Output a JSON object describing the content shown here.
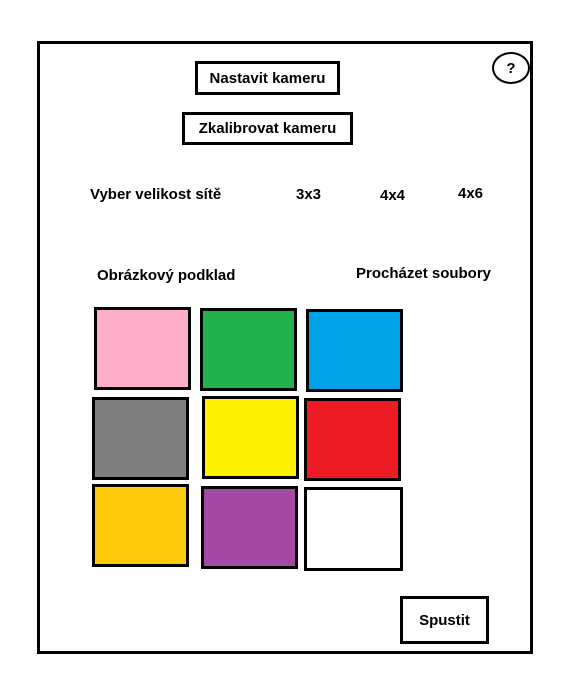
{
  "buttons": {
    "setup_camera": "Nastavit kameru",
    "calibrate_camera": "Zkalibrovat kameru",
    "help": "?",
    "start": "Spustit"
  },
  "grid_size": {
    "label": "Vyber velikost sítě",
    "options": [
      "3x3",
      "4x4",
      "4x6"
    ]
  },
  "background": {
    "label": "Obrázkový podklad",
    "browse": "Procházet soubory"
  },
  "colors": [
    {
      "name": "pink",
      "hex": "#FFAECA"
    },
    {
      "name": "green",
      "hex": "#22B14C"
    },
    {
      "name": "blue",
      "hex": "#00A2E8"
    },
    {
      "name": "gray",
      "hex": "#7F7F7F"
    },
    {
      "name": "yellow",
      "hex": "#FFF200"
    },
    {
      "name": "red",
      "hex": "#ED1C24"
    },
    {
      "name": "orange",
      "hex": "#FFC90E"
    },
    {
      "name": "purple",
      "hex": "#A349A4"
    },
    {
      "name": "white",
      "hex": "#FFFFFF"
    }
  ]
}
